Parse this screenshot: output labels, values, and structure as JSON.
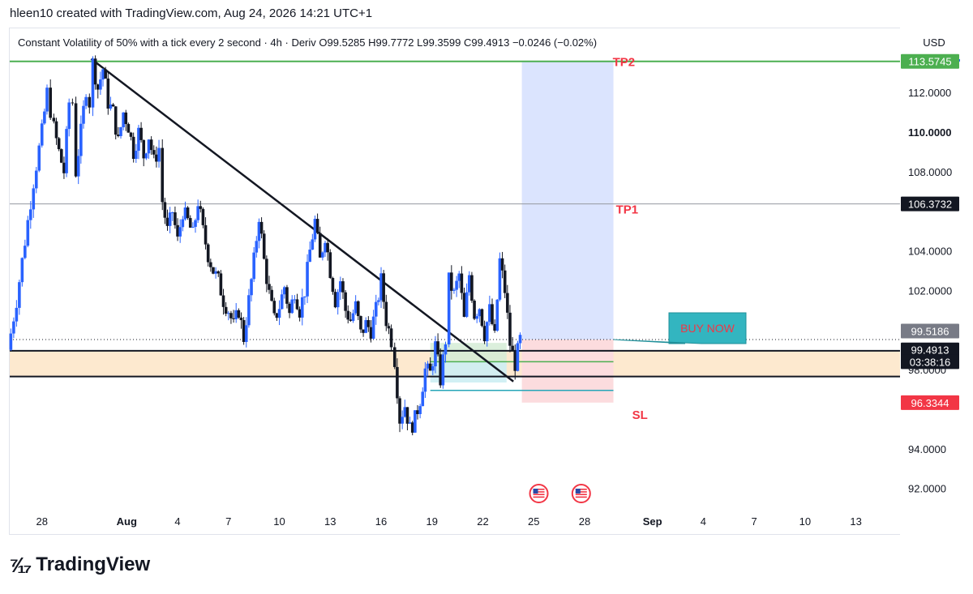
{
  "header": {
    "author_line": "hleen10 created with TradingView.com, Aug 24, 2026 14:21 UTC+1"
  },
  "footer": {
    "brand": "TradingView"
  },
  "chart_data": {
    "type": "candlestick",
    "title": "Constant Volatility of 50% with a tick every 2 second · 4h · Deriv",
    "ohlc": {
      "o_label": "O",
      "o": "99.5285",
      "h_label": "H",
      "h": "99.7772",
      "l_label": "L",
      "l": "99.3599",
      "c_label": "C",
      "c": "99.4913",
      "change": "−0.0246 (−0.02%)"
    },
    "currency": "USD",
    "y_range": [
      90.8,
      115.2
    ],
    "y_ticks": [
      {
        "v": 112,
        "label": "112.0000",
        "bold": false
      },
      {
        "v": 110,
        "label": "110.0000",
        "bold": true
      },
      {
        "v": 108,
        "label": "108.0000",
        "bold": false
      },
      {
        "v": 104,
        "label": "104.0000",
        "bold": false
      },
      {
        "v": 102,
        "label": "102.0000",
        "bold": false
      },
      {
        "v": 98,
        "label": "98.0000",
        "bold": false
      },
      {
        "v": 94,
        "label": "94.0000",
        "bold": false
      },
      {
        "v": 92,
        "label": "92.0000",
        "bold": false
      }
    ],
    "x_ticks": [
      {
        "d": -4,
        "label": "28",
        "bold": false
      },
      {
        "d": 1,
        "label": "Aug",
        "bold": true
      },
      {
        "d": 4,
        "label": "4",
        "bold": false
      },
      {
        "d": 7,
        "label": "7",
        "bold": false
      },
      {
        "d": 10,
        "label": "10",
        "bold": false
      },
      {
        "d": 13,
        "label": "13",
        "bold": false
      },
      {
        "d": 16,
        "label": "16",
        "bold": false
      },
      {
        "d": 19,
        "label": "19",
        "bold": false
      },
      {
        "d": 22,
        "label": "22",
        "bold": false
      },
      {
        "d": 25,
        "label": "25",
        "bold": false
      },
      {
        "d": 28,
        "label": "28",
        "bold": false
      },
      {
        "d": 32,
        "label": "Sep",
        "bold": true
      },
      {
        "d": 35,
        "label": "4",
        "bold": false
      },
      {
        "d": 38,
        "label": "7",
        "bold": false
      },
      {
        "d": 41,
        "label": "10",
        "bold": false
      },
      {
        "d": 44,
        "label": "13",
        "bold": false
      }
    ],
    "x_range": [
      -5.9,
      46.6
    ],
    "candle_path": [
      [
        -6.0,
        99.0
      ],
      [
        -5.5,
        101.5
      ],
      [
        -5.0,
        104.5
      ],
      [
        -4.5,
        107.5
      ],
      [
        -4.0,
        110.0
      ],
      [
        -3.7,
        112.0
      ],
      [
        -3.3,
        110.2
      ],
      [
        -3.0,
        109.0
      ],
      [
        -2.7,
        108.0
      ],
      [
        -2.4,
        111.5
      ],
      [
        -2.2,
        111.5
      ],
      [
        -2.0,
        108.0
      ],
      [
        -1.7,
        110.0
      ],
      [
        -1.4,
        112.2
      ],
      [
        -1.2,
        111.5
      ],
      [
        -1.0,
        113.5
      ],
      [
        -0.7,
        112.2
      ],
      [
        -0.4,
        113.2
      ],
      [
        -0.1,
        111.5
      ],
      [
        0.2,
        111.0
      ],
      [
        0.5,
        109.5
      ],
      [
        0.8,
        111.0
      ],
      [
        1.1,
        110.3
      ],
      [
        1.4,
        109.0
      ],
      [
        1.7,
        110.0
      ],
      [
        2.0,
        108.8
      ],
      [
        2.3,
        109.8
      ],
      [
        2.6,
        108.5
      ],
      [
        2.9,
        109.2
      ],
      [
        3.1,
        106.5
      ],
      [
        3.4,
        105.0
      ],
      [
        3.7,
        106.0
      ],
      [
        4.0,
        104.5
      ],
      [
        4.3,
        106.0
      ],
      [
        4.6,
        105.5
      ],
      [
        4.9,
        104.8
      ],
      [
        5.2,
        106.5
      ],
      [
        5.5,
        105.0
      ],
      [
        5.8,
        103.8
      ],
      [
        6.1,
        103.0
      ],
      [
        6.4,
        102.5
      ],
      [
        6.7,
        101.5
      ],
      [
        7.0,
        101.0
      ],
      [
        7.3,
        100.2
      ],
      [
        7.6,
        101.0
      ],
      [
        7.9,
        99.6
      ],
      [
        8.2,
        101.5
      ],
      [
        8.5,
        103.5
      ],
      [
        8.8,
        105.8
      ],
      [
        9.1,
        103.5
      ],
      [
        9.4,
        101.8
      ],
      [
        9.7,
        100.5
      ],
      [
        10.0,
        101.2
      ],
      [
        10.3,
        102.2
      ],
      [
        10.6,
        100.8
      ],
      [
        10.9,
        102.0
      ],
      [
        11.2,
        101.0
      ],
      [
        11.5,
        102.0
      ],
      [
        11.8,
        104.0
      ],
      [
        12.1,
        105.5
      ],
      [
        12.4,
        103.5
      ],
      [
        12.7,
        104.8
      ],
      [
        13.0,
        103.0
      ],
      [
        13.3,
        101.5
      ],
      [
        13.6,
        102.5
      ],
      [
        13.9,
        101.0
      ],
      [
        14.2,
        100.5
      ],
      [
        14.5,
        101.2
      ],
      [
        14.8,
        99.8
      ],
      [
        15.1,
        100.3
      ],
      [
        15.4,
        100.0
      ],
      [
        15.7,
        101.0
      ],
      [
        16.0,
        102.5
      ],
      [
        16.3,
        100.5
      ],
      [
        16.6,
        99.5
      ],
      [
        16.8,
        98.5
      ],
      [
        17.1,
        95.5
      ],
      [
        17.4,
        96.2
      ],
      [
        17.7,
        95.0
      ],
      [
        18.0,
        95.5
      ],
      [
        18.3,
        96.5
      ],
      [
        18.6,
        98.0
      ],
      [
        18.9,
        97.8
      ],
      [
        19.2,
        99.2
      ],
      [
        19.5,
        97.5
      ],
      [
        19.8,
        99.5
      ],
      [
        20.0,
        102.5
      ],
      [
        20.3,
        101.8
      ],
      [
        20.6,
        102.8
      ],
      [
        20.9,
        100.5
      ],
      [
        21.2,
        102.8
      ],
      [
        21.5,
        100.8
      ],
      [
        21.8,
        101.2
      ],
      [
        22.1,
        99.8
      ],
      [
        22.4,
        101.0
      ],
      [
        22.7,
        99.6
      ],
      [
        23.0,
        103.5
      ],
      [
        23.3,
        102.0
      ],
      [
        23.6,
        99.3
      ],
      [
        23.9,
        98.3
      ],
      [
        24.2,
        99.5
      ]
    ],
    "trendline": {
      "x1": -1.1,
      "y1": 113.7,
      "x2": 23.8,
      "y2": 97.4
    },
    "support_zone": {
      "top": 98.95,
      "bottom": 97.65,
      "color": "#fde9cf"
    },
    "support_lines": [
      98.95,
      97.65
    ],
    "dotted_price": 99.5186,
    "tp1_line": 106.3732,
    "tp2_line": 113.5745,
    "labels": {
      "tp1": "TP1",
      "tp2": "TP2",
      "sl": "SL",
      "callout": "BUY NOW"
    },
    "position": {
      "x_start": 24.3,
      "x_end": 29.7,
      "entry": 99.5186,
      "target": 113.5745,
      "stop": 96.3344
    },
    "range_box": {
      "x_start": 18.9,
      "x_end": 23.4,
      "top": 99.35,
      "bottom": 97.35,
      "mid": 98.4,
      "base": 96.95
    },
    "axis_labels": [
      {
        "label": "113.5745",
        "v": 113.5745,
        "bg": "#4caf50",
        "color": "#ffffff"
      },
      {
        "label": "106.3732",
        "v": 106.3732,
        "bg": "#131722",
        "color": "#ffffff"
      },
      {
        "label": "99.5186",
        "v": 99.95,
        "bg": "#787b86",
        "color": "#ffffff"
      },
      {
        "label": "99.4913",
        "v": 99.0,
        "bg": "#131722",
        "color": "#ffffff"
      },
      {
        "label": "03:38:16",
        "v": 98.4,
        "bg": "#131722",
        "color": "#ffffff"
      },
      {
        "label": "96.3344",
        "v": 96.3344,
        "bg": "#f23645",
        "color": "#ffffff"
      }
    ],
    "events": [
      {
        "d": 25.3,
        "icon": "us-flag-icon"
      },
      {
        "d": 27.8,
        "icon": "us-flag-icon"
      }
    ],
    "colors": {
      "up": "#2962ff",
      "down": "#131722",
      "tp_green": "#4caf50",
      "label_red": "#f23645",
      "target_fill": "#dbe4fe",
      "stop_fill": "#fcdcde",
      "callout_bg": "#33b5c0",
      "callout_text": "#f23645"
    }
  }
}
